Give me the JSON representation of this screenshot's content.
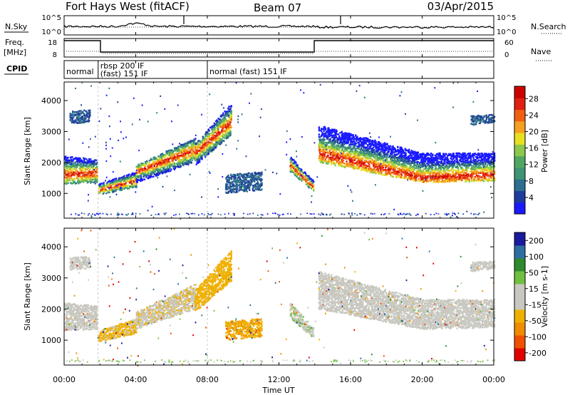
{
  "header": {
    "station": "Fort Hays West (fitACF)",
    "beam": "Beam 07",
    "date": "03/Apr/2015"
  },
  "noise_panel": {
    "left_label": "N.Sky",
    "right_label": "N.Search",
    "left_ticks": [
      "10^5",
      "10^0"
    ],
    "right_ticks": [
      "10^5",
      "10^0"
    ]
  },
  "freq_panel": {
    "left_label_line1": "Freq.",
    "left_label_line2": "[MHz]",
    "right_label": "Nave",
    "left_ticks": [
      "18",
      "8"
    ],
    "right_ticks": [
      "60",
      "0"
    ]
  },
  "cpid_panel": {
    "label": "CPID",
    "segments": [
      {
        "start_hour": 0.0,
        "end_hour": 1.9,
        "text": "normal",
        "text2": ""
      },
      {
        "start_hour": 1.9,
        "end_hour": 8.0,
        "text": "rbsp 200 IF",
        "text2": "(fast) 151 IF"
      },
      {
        "start_hour": 8.0,
        "end_hour": 24.0,
        "text": "normal (fast) 151 IF",
        "text2": ""
      }
    ]
  },
  "time_axis": {
    "title": "Time UT",
    "ticks": [
      "00:00",
      "04:00",
      "08:00",
      "12:00",
      "16:00",
      "20:00",
      "00:00"
    ]
  },
  "colors": {
    "power": [
      "#1a1aff",
      "#1e3c9e",
      "#2e6e8e",
      "#3f9475",
      "#50a860",
      "#8cc84a",
      "#e8e020",
      "#f6a020",
      "#f06010",
      "#e02010",
      "#cc0000"
    ],
    "velocity": [
      "#e00000",
      "#f05000",
      "#f08c00",
      "#f0b000",
      "#c8c8c0",
      "#c8c8c0",
      "#70c040",
      "#2e8a2e",
      "#2e6ea0",
      "#1a1a9e"
    ]
  },
  "chart_data": [
    {
      "type": "heatmap",
      "title": "",
      "xlabel": "Time UT",
      "ylabel": "Slant Range [km]",
      "xlim_hours": [
        0,
        24
      ],
      "ylim": [
        200,
        4600
      ],
      "y_ticks": [
        1000,
        2000,
        3000,
        4000
      ],
      "colorbar": {
        "label": "Power [dB]",
        "ticks": [
          4,
          8,
          12,
          16,
          20,
          24,
          28
        ],
        "range": [
          0,
          31
        ]
      },
      "bands": [
        {
          "t0": 0.0,
          "t1": 1.8,
          "r_low": [
            1300,
            1350
          ],
          "r_high": [
            2200,
            2100
          ],
          "peak": [
            1600,
            1650
          ]
        },
        {
          "t0": 1.9,
          "t1": 4.0,
          "r_low": [
            950,
            1200
          ],
          "r_high": [
            1300,
            1700
          ],
          "peak": [
            1100,
            1400
          ]
        },
        {
          "t0": 4.0,
          "t1": 7.3,
          "r_low": [
            1350,
            2000
          ],
          "r_high": [
            1900,
            2800
          ],
          "peak": [
            1700,
            2400
          ]
        },
        {
          "t0": 7.3,
          "t1": 9.3,
          "r_low": [
            1900,
            2900
          ],
          "r_high": [
            2600,
            3900
          ],
          "peak": [
            2300,
            3300
          ]
        },
        {
          "t0": 9.0,
          "t1": 11.0,
          "r_low": [
            1000,
            1100
          ],
          "r_high": [
            1600,
            1700
          ],
          "peak": [
            1300,
            1400
          ]
        },
        {
          "t0": 12.6,
          "t1": 13.9,
          "r_low": [
            1700,
            1050
          ],
          "r_high": [
            2200,
            1400
          ],
          "peak": [
            1900,
            1200
          ]
        },
        {
          "t0": 14.2,
          "t1": 20.0,
          "r_low": [
            2000,
            1350
          ],
          "r_high": [
            3200,
            2300
          ],
          "peak": [
            2300,
            1500
          ]
        },
        {
          "t0": 20.0,
          "t1": 24.0,
          "r_low": [
            1350,
            1400
          ],
          "r_high": [
            2300,
            2300
          ],
          "peak": [
            1500,
            1600
          ]
        },
        {
          "t0": 22.7,
          "t1": 24.0,
          "r_low": [
            3200,
            3300
          ],
          "r_high": [
            3500,
            3550
          ],
          "peak": [
            3350,
            3400
          ]
        },
        {
          "t0": 0.3,
          "t1": 1.4,
          "r_low": [
            3250,
            3300
          ],
          "r_high": [
            3650,
            3700
          ],
          "peak": [
            3450,
            3500
          ]
        }
      ]
    },
    {
      "type": "heatmap",
      "title": "",
      "xlabel": "Time UT",
      "ylabel": "Slant Range [km]",
      "xlim_hours": [
        0,
        24
      ],
      "ylim": [
        200,
        4600
      ],
      "y_ticks": [
        1000,
        2000,
        3000,
        4000
      ],
      "colorbar": {
        "label": "Velocity [m s-1]",
        "ticks": [
          200,
          100,
          50,
          15,
          -15,
          -50,
          -100,
          -200
        ],
        "range": [
          -250,
          250
        ]
      },
      "bands": [
        {
          "t0": 0.0,
          "t1": 1.8,
          "r_low": [
            1300,
            1350
          ],
          "r_high": [
            2200,
            2100
          ],
          "vel": 0
        },
        {
          "t0": 1.9,
          "t1": 4.0,
          "r_low": [
            950,
            1200
          ],
          "r_high": [
            1300,
            1700
          ],
          "vel": -60
        },
        {
          "t0": 4.0,
          "t1": 7.3,
          "r_low": [
            1350,
            2000
          ],
          "r_high": [
            1900,
            2800
          ],
          "vel": -40
        },
        {
          "t0": 7.3,
          "t1": 9.3,
          "r_low": [
            1900,
            2900
          ],
          "r_high": [
            2600,
            3900
          ],
          "vel": -70
        },
        {
          "t0": 9.0,
          "t1": 11.0,
          "r_low": [
            1000,
            1100
          ],
          "r_high": [
            1600,
            1700
          ],
          "vel": -90
        },
        {
          "t0": 12.6,
          "t1": 13.9,
          "r_low": [
            1700,
            1050
          ],
          "r_high": [
            2200,
            1400
          ],
          "vel": 40
        },
        {
          "t0": 14.2,
          "t1": 20.0,
          "r_low": [
            2000,
            1350
          ],
          "r_high": [
            3200,
            2300
          ],
          "vel": 0
        },
        {
          "t0": 20.0,
          "t1": 24.0,
          "r_low": [
            1350,
            1400
          ],
          "r_high": [
            2300,
            2300
          ],
          "vel": 0
        },
        {
          "t0": 22.7,
          "t1": 24.0,
          "r_low": [
            3200,
            3300
          ],
          "r_high": [
            3500,
            3550
          ],
          "vel": 0
        },
        {
          "t0": 0.3,
          "t1": 1.4,
          "r_low": [
            3250,
            3300
          ],
          "r_high": [
            3650,
            3700
          ],
          "vel": 0
        }
      ]
    }
  ]
}
